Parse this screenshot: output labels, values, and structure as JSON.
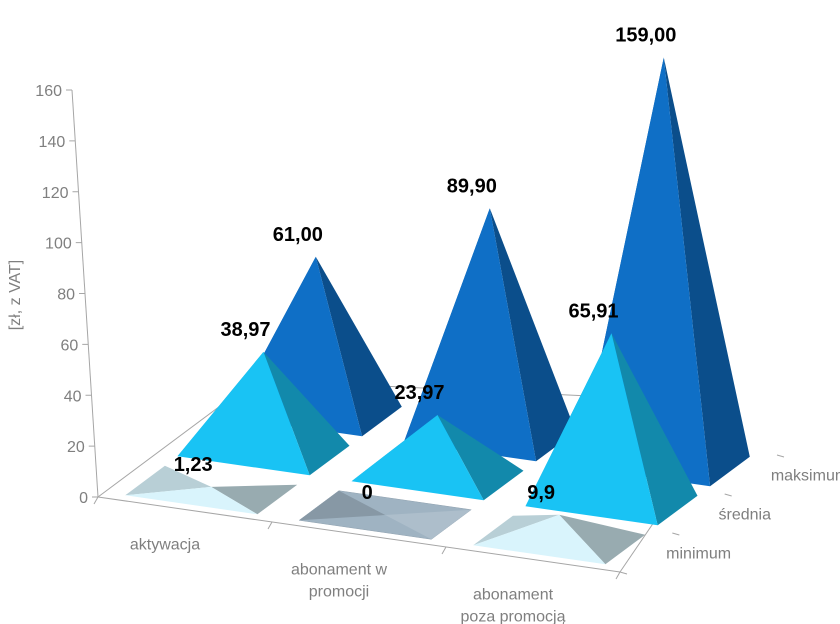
{
  "chart_data": {
    "type": "bar",
    "style": "3d-pyramid",
    "title": "",
    "ylabel": "[zł, z VAT]",
    "ylim": [
      0,
      160
    ],
    "yticks": [
      0,
      20,
      40,
      60,
      80,
      100,
      120,
      140,
      160
    ],
    "grid": false,
    "categories": [
      {
        "line1": "aktywacja",
        "line2": ""
      },
      {
        "line1": "abonament w",
        "line2": "promocji"
      },
      {
        "line1": "abonament",
        "line2": "poza promocją"
      }
    ],
    "series": [
      {
        "name": "minimum",
        "values": [
          1.23,
          0,
          9.9
        ],
        "labels": [
          "1,23",
          "0",
          "9,9"
        ],
        "color": "#d9f4fc"
      },
      {
        "name": "średnia",
        "values": [
          38.97,
          23.97,
          65.91
        ],
        "labels": [
          "38,97",
          "23,97",
          "65,91"
        ],
        "color": "#19c3f4"
      },
      {
        "name": "maksimum",
        "values": [
          61.0,
          89.9,
          159.0
        ],
        "labels": [
          "61,00",
          "89,90",
          "159,00"
        ],
        "color": "#0f6fc6"
      }
    ],
    "colors": {
      "axis": "#a6a6a6",
      "text": "#7f7f7f",
      "min_flat": "#9fb3c2"
    }
  }
}
